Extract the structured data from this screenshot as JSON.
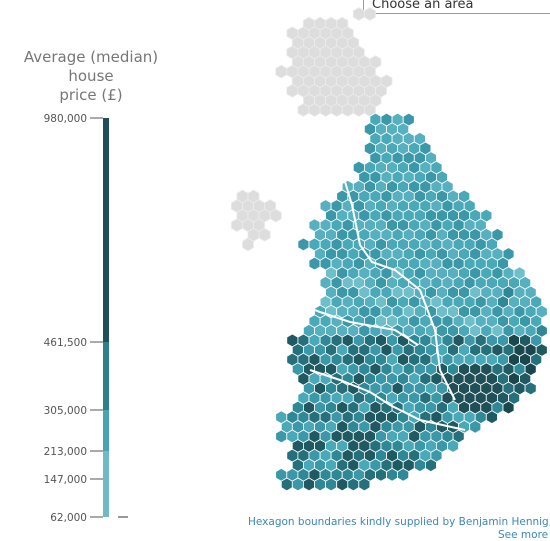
{
  "controls": {
    "area_select_label": "Choose an area"
  },
  "legend": {
    "title_line1": "Average (median) house",
    "title_line2": "price (£)",
    "ticks": [
      "980,000",
      "461,500",
      "305,000",
      "213,000",
      "147,000",
      "62,000"
    ],
    "scale_colors": [
      "#6fbac4",
      "#4aa3b2",
      "#2e7f8c",
      "#1f4f57"
    ]
  },
  "map": {
    "region_colors": {
      "scotland": "#dddddd",
      "north": "#49a9b8",
      "midlands": "#6fbfcb",
      "south": "#2c7f8a",
      "london": "#1f4f57"
    }
  },
  "footer": {
    "credit": "Hexagon boundaries kindly supplied by Benjamin Hennig, G",
    "see_more": "See more"
  }
}
